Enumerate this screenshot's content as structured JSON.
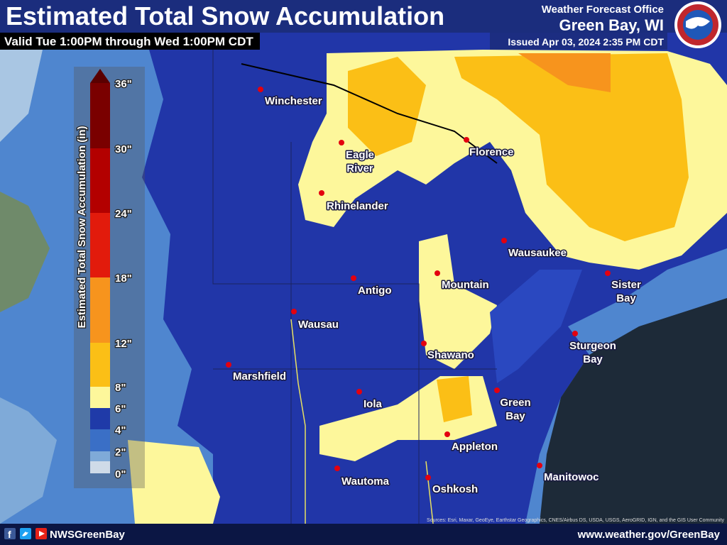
{
  "header": {
    "title": "Estimated Total Snow Accumulation",
    "subtitle": "Valid Tue 1:00PM through Wed 1:00PM CDT",
    "office_line": "Weather Forecast Office",
    "office": "Green Bay, WI",
    "issued": "Issued Apr 03, 2024 2:35 PM CDT"
  },
  "legend": {
    "title": "Estimated Total Snow Accumulation (in)",
    "ticks": [
      "36\"",
      "30\"",
      "24\"",
      "18\"",
      "12\"",
      "8\"",
      "6\"",
      "4\"",
      "2\"",
      "0\""
    ]
  },
  "cities": [
    {
      "label": [
        "Winchester"
      ]
    },
    {
      "label": [
        "Eagle",
        "River"
      ]
    },
    {
      "label": [
        "Florence"
      ]
    },
    {
      "label": [
        "Rhinelander"
      ]
    },
    {
      "label": [
        "Wausaukee"
      ]
    },
    {
      "label": [
        "Antigo"
      ]
    },
    {
      "label": [
        "Mountain"
      ]
    },
    {
      "label": [
        "Sister",
        "Bay"
      ]
    },
    {
      "label": [
        "Wausau"
      ]
    },
    {
      "label": [
        "Shawano"
      ]
    },
    {
      "label": [
        "Sturgeon",
        "Bay"
      ]
    },
    {
      "label": [
        "Marshfield"
      ]
    },
    {
      "label": [
        "Iola"
      ]
    },
    {
      "label": [
        "Green",
        "Bay"
      ]
    },
    {
      "label": [
        "Appleton"
      ]
    },
    {
      "label": [
        "Wautoma"
      ]
    },
    {
      "label": [
        "Oshkosh"
      ]
    },
    {
      "label": [
        "Manitowoc"
      ]
    }
  ],
  "footer": {
    "social": "NWSGreenBay",
    "url": "www.weather.gov/GreenBay",
    "source": "Sources: Esri, Maxar, GeoEye, Earthstar Geographics, CNES/Airbus DS, USDA, USGS, AeroGRID, IGN, and the GIS User Community"
  }
}
